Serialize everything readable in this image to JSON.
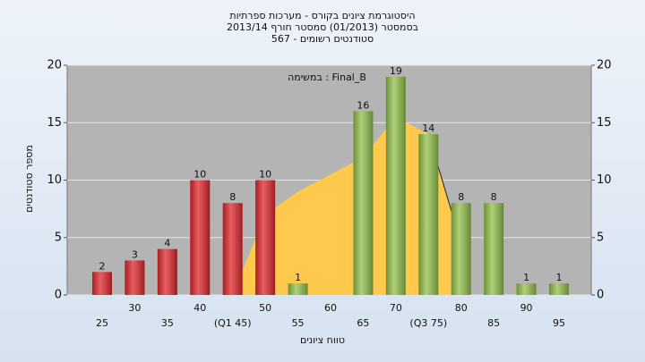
{
  "chart_data": {
    "type": "bar",
    "title": [
      "היסטוגרמת ציונים בקורס - מערכות ספרתיות",
      "בסמסטר  (01/2013)  סמסטר חורף 2013/14",
      "סטודנטים רשומים - 567"
    ],
    "annotation": "Final_B : במשימה",
    "ylabel": "מספר סטודנטים",
    "xlabel": "טווח ציונים",
    "categories": [
      "25",
      "30",
      "35",
      "40",
      "(Q1 45)",
      "50",
      "55",
      "60",
      "65",
      "70",
      "(Q3 75)",
      "80",
      "85",
      "90",
      "95"
    ],
    "values": [
      2,
      3,
      4,
      10,
      8,
      10,
      1,
      0,
      16,
      19,
      14,
      8,
      8,
      1,
      1
    ],
    "colors": [
      "#e0282c",
      "#e0282c",
      "#e0282c",
      "#e0282c",
      "#e0282c",
      "#e0282c",
      "#92c04a",
      "#92c04a",
      "#92c04a",
      "#92c04a",
      "#92c04a",
      "#92c04a",
      "#92c04a",
      "#92c04a",
      "#92c04a"
    ],
    "area": {
      "color": "#ffc94d",
      "values": [
        null,
        null,
        null,
        null,
        0,
        7,
        9,
        10.5,
        12,
        15.5,
        14,
        4.5,
        null,
        null,
        null
      ]
    },
    "ylim": [
      0,
      20
    ],
    "yticks": [
      0,
      5,
      10,
      15,
      20
    ],
    "grid": true
  }
}
